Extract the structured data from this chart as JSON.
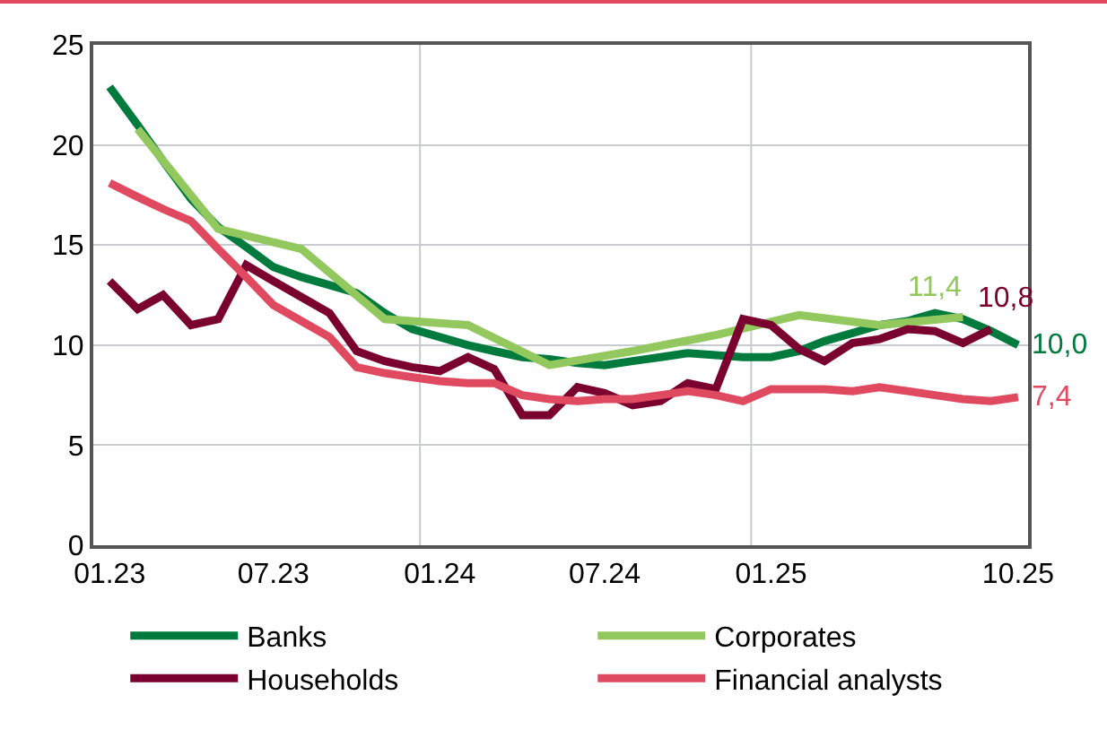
{
  "chart_data": {
    "type": "line",
    "x": [
      "2023-01",
      "2023-02",
      "2023-03",
      "2023-04",
      "2023-05",
      "2023-06",
      "2023-07",
      "2023-08",
      "2023-09",
      "2023-10",
      "2023-11",
      "2023-12",
      "2024-01",
      "2024-02",
      "2024-03",
      "2024-04",
      "2024-05",
      "2024-06",
      "2024-07",
      "2024-08",
      "2024-09",
      "2024-10",
      "2024-11",
      "2024-12",
      "2025-01",
      "2025-02",
      "2025-03",
      "2025-04",
      "2025-05",
      "2025-06",
      "2025-07",
      "2025-08",
      "2025-09",
      "2025-10"
    ],
    "series": [
      {
        "name": "Banks",
        "color": "#007a3d",
        "values": [
          22.9,
          21.0,
          19.2,
          17.3,
          15.9,
          14.9,
          13.9,
          13.4,
          13.0,
          12.6,
          11.6,
          10.8,
          10.4,
          10.0,
          9.7,
          9.4,
          9.3,
          9.1,
          9.0,
          9.2,
          9.4,
          9.6,
          9.5,
          9.4,
          9.4,
          9.7,
          10.2,
          10.6,
          11.0,
          11.2,
          11.6,
          11.3,
          10.7,
          10.0
        ]
      },
      {
        "name": "Corporates",
        "color": "#92c85e",
        "x": [
          "2023-02",
          "2023-05",
          "2023-08",
          "2023-11",
          "2024-02",
          "2024-05",
          "2024-08",
          "2024-11",
          "2025-02",
          "2025-05",
          "2025-08"
        ],
        "values": [
          20.8,
          15.8,
          14.8,
          11.3,
          11.0,
          9.0,
          9.7,
          10.5,
          11.5,
          11.0,
          11.4
        ]
      },
      {
        "name": "Households",
        "color": "#7a0030",
        "values": [
          13.2,
          11.8,
          12.5,
          11.0,
          11.3,
          14.0,
          13.2,
          12.4,
          11.6,
          9.7,
          9.2,
          8.9,
          8.7,
          9.4,
          8.8,
          6.5,
          6.5,
          7.9,
          7.6,
          7.0,
          7.2,
          8.1,
          7.8,
          11.3,
          11.0,
          9.8,
          9.2,
          10.1,
          10.3,
          10.8,
          10.7,
          10.1,
          10.8,
          null
        ]
      },
      {
        "name": "Financial analysts",
        "color": "#e04a60",
        "values": [
          18.1,
          17.4,
          16.8,
          16.2,
          14.8,
          13.4,
          12.0,
          11.2,
          10.4,
          8.9,
          8.6,
          8.4,
          8.2,
          8.1,
          8.1,
          7.5,
          7.3,
          7.2,
          7.3,
          7.3,
          7.5,
          7.7,
          7.5,
          7.2,
          7.8,
          7.8,
          7.8,
          7.7,
          7.9,
          7.7,
          7.5,
          7.3,
          7.2,
          7.4
        ]
      }
    ],
    "ylim": [
      0,
      25
    ],
    "yticks": [
      0,
      5,
      10,
      15,
      20,
      25
    ],
    "xlim": [
      "2022-12-14",
      "2025-10-12"
    ],
    "xticks": [
      {
        "value": "2023-01",
        "label": "01.23"
      },
      {
        "value": "2023-07",
        "label": "07.23"
      },
      {
        "value": "2024-01",
        "label": "01.24"
      },
      {
        "value": "2024-07",
        "label": "07.24"
      },
      {
        "value": "2025-01",
        "label": "01.25"
      },
      {
        "value": "2025-10",
        "label": "10.25"
      }
    ],
    "grid": "y",
    "ref_lines": [
      {
        "axis": "x",
        "value": "2023-12-10",
        "color": "#c8ccd0"
      },
      {
        "axis": "x",
        "value": "2024-12-10",
        "color": "#c8ccd0"
      }
    ],
    "annotations": [
      {
        "text": "11,4",
        "x": "2025-08",
        "y": 11.4
      },
      {
        "text": "10,8",
        "x": "2025-09",
        "y": 10.8
      },
      {
        "text": "10,0",
        "x": "2025-10",
        "y": 10.0
      },
      {
        "text": "7,4",
        "x": "2025-10",
        "y": 7.4
      }
    ],
    "legend": "bottom",
    "line_style": "solid",
    "marker": "none"
  }
}
